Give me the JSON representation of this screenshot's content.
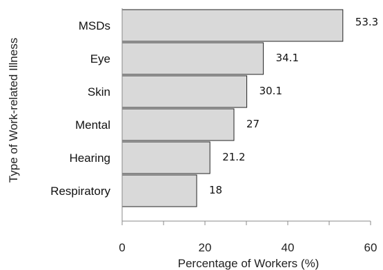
{
  "chart_data": {
    "type": "bar",
    "orientation": "horizontal",
    "categories": [
      "MSDs",
      "Eye",
      "Skin",
      "Mental",
      "Hearing",
      "Respiratory"
    ],
    "values": [
      53.3,
      34.1,
      30.1,
      27,
      21.2,
      18
    ],
    "value_labels": [
      "53.3",
      "34.1",
      "30.1",
      "27",
      "21.2",
      "18"
    ],
    "xlabel": "Percentage of Workers (%)",
    "ylabel": "Type of Work-related Illness",
    "xlim": [
      0,
      60
    ],
    "x_ticks": [
      0,
      20,
      40,
      60
    ],
    "x_tick_labels": [
      "0",
      "20",
      "40",
      "60"
    ],
    "x_minor_step": 10,
    "grid": false,
    "legend": "none",
    "colors": {
      "bar_fill": "#d9d9d9",
      "bar_stroke": "#222222",
      "axis": "#888888"
    }
  }
}
